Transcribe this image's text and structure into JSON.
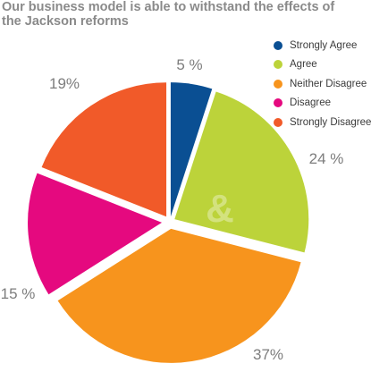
{
  "chart_data": {
    "type": "pie",
    "title": "Our business model is able to withstand the effects of the Jackson reforms",
    "categories": [
      "Strongly Agree",
      "Agree",
      "Neither Disagree",
      "Disagree",
      "Strongly Disagree"
    ],
    "values": [
      5,
      24,
      37,
      15,
      19
    ],
    "value_labels": [
      "5 %",
      "24 %",
      "37%",
      "15 %",
      "19%"
    ],
    "colors": [
      "#0a4f93",
      "#bcd33a",
      "#f7941d",
      "#e5097f",
      "#f15a29"
    ],
    "exploded": true,
    "legend_position": "top-right"
  },
  "watermark": {
    "text": "&",
    "color": "#ffffff"
  }
}
